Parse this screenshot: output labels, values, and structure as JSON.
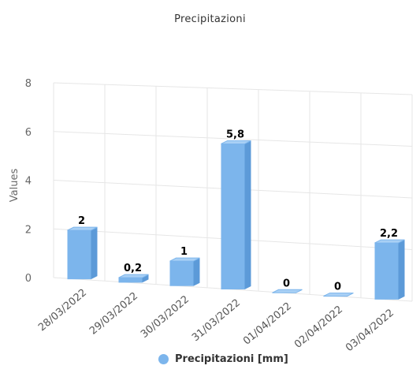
{
  "chart_data": {
    "type": "bar",
    "title": "Precipitazioni",
    "ylabel": "Values",
    "xlabel": "",
    "ylim": [
      0,
      8
    ],
    "yticks": [
      0,
      2,
      4,
      6,
      8
    ],
    "categories": [
      "28/03/2022",
      "29/03/2022",
      "30/03/2022",
      "31/03/2022",
      "01/04/2022",
      "02/04/2022",
      "03/04/2022"
    ],
    "series": [
      {
        "name": "Precipitazioni [mm]",
        "values": [
          2,
          0.2,
          1,
          5.8,
          0,
          0,
          2.2
        ],
        "labels": [
          "2",
          "0,2",
          "1",
          "5,8",
          "0",
          "0",
          "2,2"
        ],
        "color": "#7cb5ec"
      }
    ],
    "legend": "bottom-center",
    "grid": true,
    "style": "3d-columns"
  }
}
